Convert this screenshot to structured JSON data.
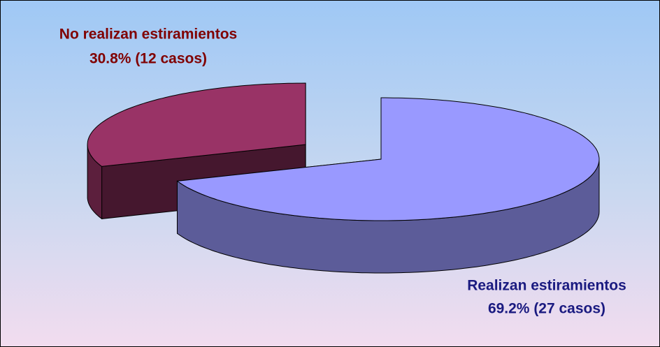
{
  "chart_data": {
    "type": "pie3d",
    "categories": [
      "No realizan estiramientos",
      "Realizan estiramientos"
    ],
    "values": [
      30.8,
      69.2
    ],
    "value_labels": [
      "30.8% (12 casos)",
      "69.2% (27 casos)"
    ],
    "colors": [
      "#993366",
      "#9999ff"
    ],
    "label_colors": [
      "#800000",
      "#1a1a80"
    ]
  }
}
